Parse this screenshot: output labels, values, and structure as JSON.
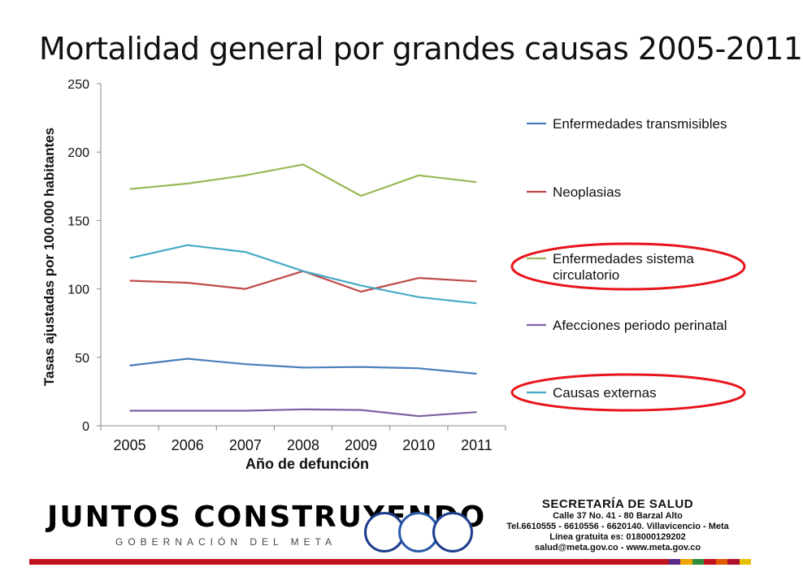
{
  "slide_title": "Mortalidad general por grandes causas 2005-2011",
  "colors": {
    "transmisibles": "#4a7ebb",
    "neoplasias": "#be4b48",
    "circulatorio": "#98b954",
    "perinatal": "#7d60a0",
    "externas": "#46aac5",
    "highlight": "#e8141c"
  },
  "chart_data": {
    "type": "line",
    "xlabel": "Año de defunción",
    "ylabel": "Tasas ajustadas por 100.000 habitantes",
    "ylim": [
      0,
      250
    ],
    "yticks": [
      "0",
      "50",
      "100",
      "150",
      "200",
      "250"
    ],
    "categories": [
      "2005",
      "2006",
      "2007",
      "2008",
      "2009",
      "2010",
      "2011"
    ],
    "legend_position": "right",
    "series": [
      {
        "name": "Enfermedades transmisibles",
        "color": "#4a7ebb",
        "values": [
          44,
          49,
          45,
          42.5,
          43,
          42,
          38
        ],
        "highlighted": false
      },
      {
        "name": "Neoplasias",
        "color": "#be4b48",
        "values": [
          106,
          104.5,
          100,
          113,
          98,
          108,
          105.5
        ],
        "highlighted": false
      },
      {
        "name": "Enfermedades sistema circulatorio",
        "color": "#98b954",
        "values": [
          173,
          177,
          183,
          191,
          168,
          183,
          178
        ],
        "highlighted": true
      },
      {
        "name": "Afecciones periodo perinatal",
        "color": "#7d60a0",
        "values": [
          11,
          11,
          11,
          12,
          11.5,
          7,
          10
        ],
        "highlighted": false
      },
      {
        "name": "Causas externas",
        "color": "#46aac5",
        "values": [
          122.5,
          132,
          127,
          113,
          102.5,
          94,
          89.5
        ],
        "highlighted": true
      }
    ]
  },
  "footer": {
    "logo_text": "JUNTOS CONSTRUYENDO",
    "logo_sub": "GOBERNACIÓN DEL META",
    "secretaria_title": "SECRETARÍA DE SALUD",
    "address": "Calle 37 No. 41 - 80 Barzal Alto",
    "phones": "Tel.6610555 - 6610556 - 6620140. Villavicencio - Meta",
    "hotline": "Línea gratuita es: 018000129202",
    "contact": "salud@meta.gov.co - www.meta.gov.co",
    "stripe_colors": [
      "#c1121f",
      "#5b2a86",
      "#f0a500",
      "#2e8b3c",
      "#c1121f",
      "#e05a00",
      "#b01030",
      "#e8c000"
    ]
  }
}
